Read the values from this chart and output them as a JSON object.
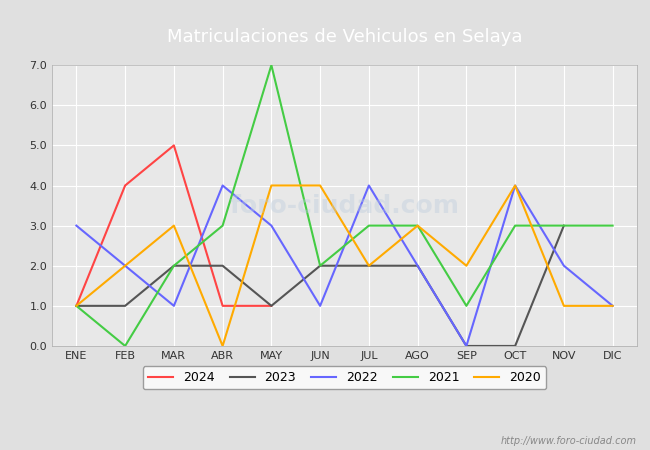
{
  "title": "Matriculaciones de Vehiculos en Selaya",
  "months": [
    "ENE",
    "FEB",
    "MAR",
    "ABR",
    "MAY",
    "JUN",
    "JUL",
    "AGO",
    "SEP",
    "OCT",
    "NOV",
    "DIC"
  ],
  "series": {
    "2024": {
      "color": "#ff4444",
      "data": [
        1,
        4,
        5,
        1,
        1,
        null,
        null,
        null,
        null,
        null,
        null,
        null
      ]
    },
    "2023": {
      "color": "#555555",
      "data": [
        1,
        1,
        2,
        2,
        1,
        2,
        2,
        2,
        0,
        0,
        3,
        null
      ]
    },
    "2022": {
      "color": "#6666ff",
      "data": [
        3,
        2,
        1,
        4,
        3,
        1,
        4,
        2,
        0,
        4,
        2,
        1
      ]
    },
    "2021": {
      "color": "#44cc44",
      "data": [
        1,
        0,
        2,
        3,
        7,
        2,
        3,
        3,
        1,
        3,
        3,
        3
      ]
    },
    "2020": {
      "color": "#ffaa00",
      "data": [
        1,
        2,
        3,
        0,
        4,
        4,
        2,
        3,
        2,
        4,
        1,
        1
      ]
    }
  },
  "ylim": [
    0,
    7.0
  ],
  "yticks": [
    0.0,
    1.0,
    2.0,
    3.0,
    4.0,
    5.0,
    6.0,
    7.0
  ],
  "legend_order": [
    "2024",
    "2023",
    "2022",
    "2021",
    "2020"
  ],
  "header_bg": "#4472c4",
  "bg_color": "#e0e0e0",
  "plot_bg": "#e8e8e8",
  "grid_color": "#ffffff",
  "url_text": "http://www.foro-ciudad.com",
  "title_fontsize": 13,
  "tick_fontsize": 8,
  "legend_fontsize": 9
}
